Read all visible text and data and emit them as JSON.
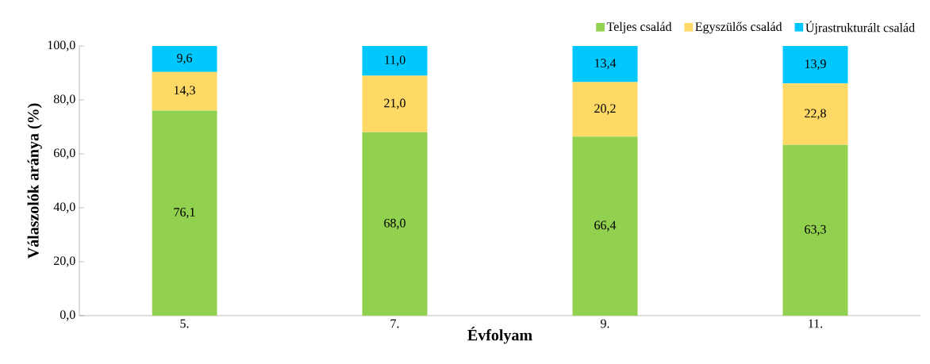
{
  "chart_data": {
    "type": "bar",
    "stacked": true,
    "categories": [
      "5.",
      "7.",
      "9.",
      "11."
    ],
    "series": [
      {
        "name": "Teljes család",
        "color": "#92d050",
        "values": [
          76.1,
          68.0,
          66.4,
          63.3
        ],
        "value_labels": [
          "76,1",
          "68,0",
          "66,4",
          "63,3"
        ]
      },
      {
        "name": "Egyszülős család",
        "color": "#ffd966",
        "values": [
          14.3,
          21.0,
          20.2,
          22.8
        ],
        "value_labels": [
          "14,3",
          "21,0",
          "20,2",
          "22,8"
        ]
      },
      {
        "name": "Újrastrukturált család",
        "color": "#00c8ff",
        "values": [
          9.6,
          11.0,
          13.4,
          13.9
        ],
        "value_labels": [
          "9,6",
          "11,0",
          "13,4",
          "13,9"
        ]
      }
    ],
    "xlabel": "Évfolyam",
    "ylabel": "Válaszolók aránya (%)",
    "ylim": [
      0,
      100
    ],
    "yticks": [
      {
        "value": 0,
        "label": "0,0"
      },
      {
        "value": 20,
        "label": "20,0"
      },
      {
        "value": 40,
        "label": "40,0"
      },
      {
        "value": 60,
        "label": "60,0"
      },
      {
        "value": 80,
        "label": "80,0"
      },
      {
        "value": 100,
        "label": "100,0"
      }
    ],
    "legend": "top right"
  }
}
